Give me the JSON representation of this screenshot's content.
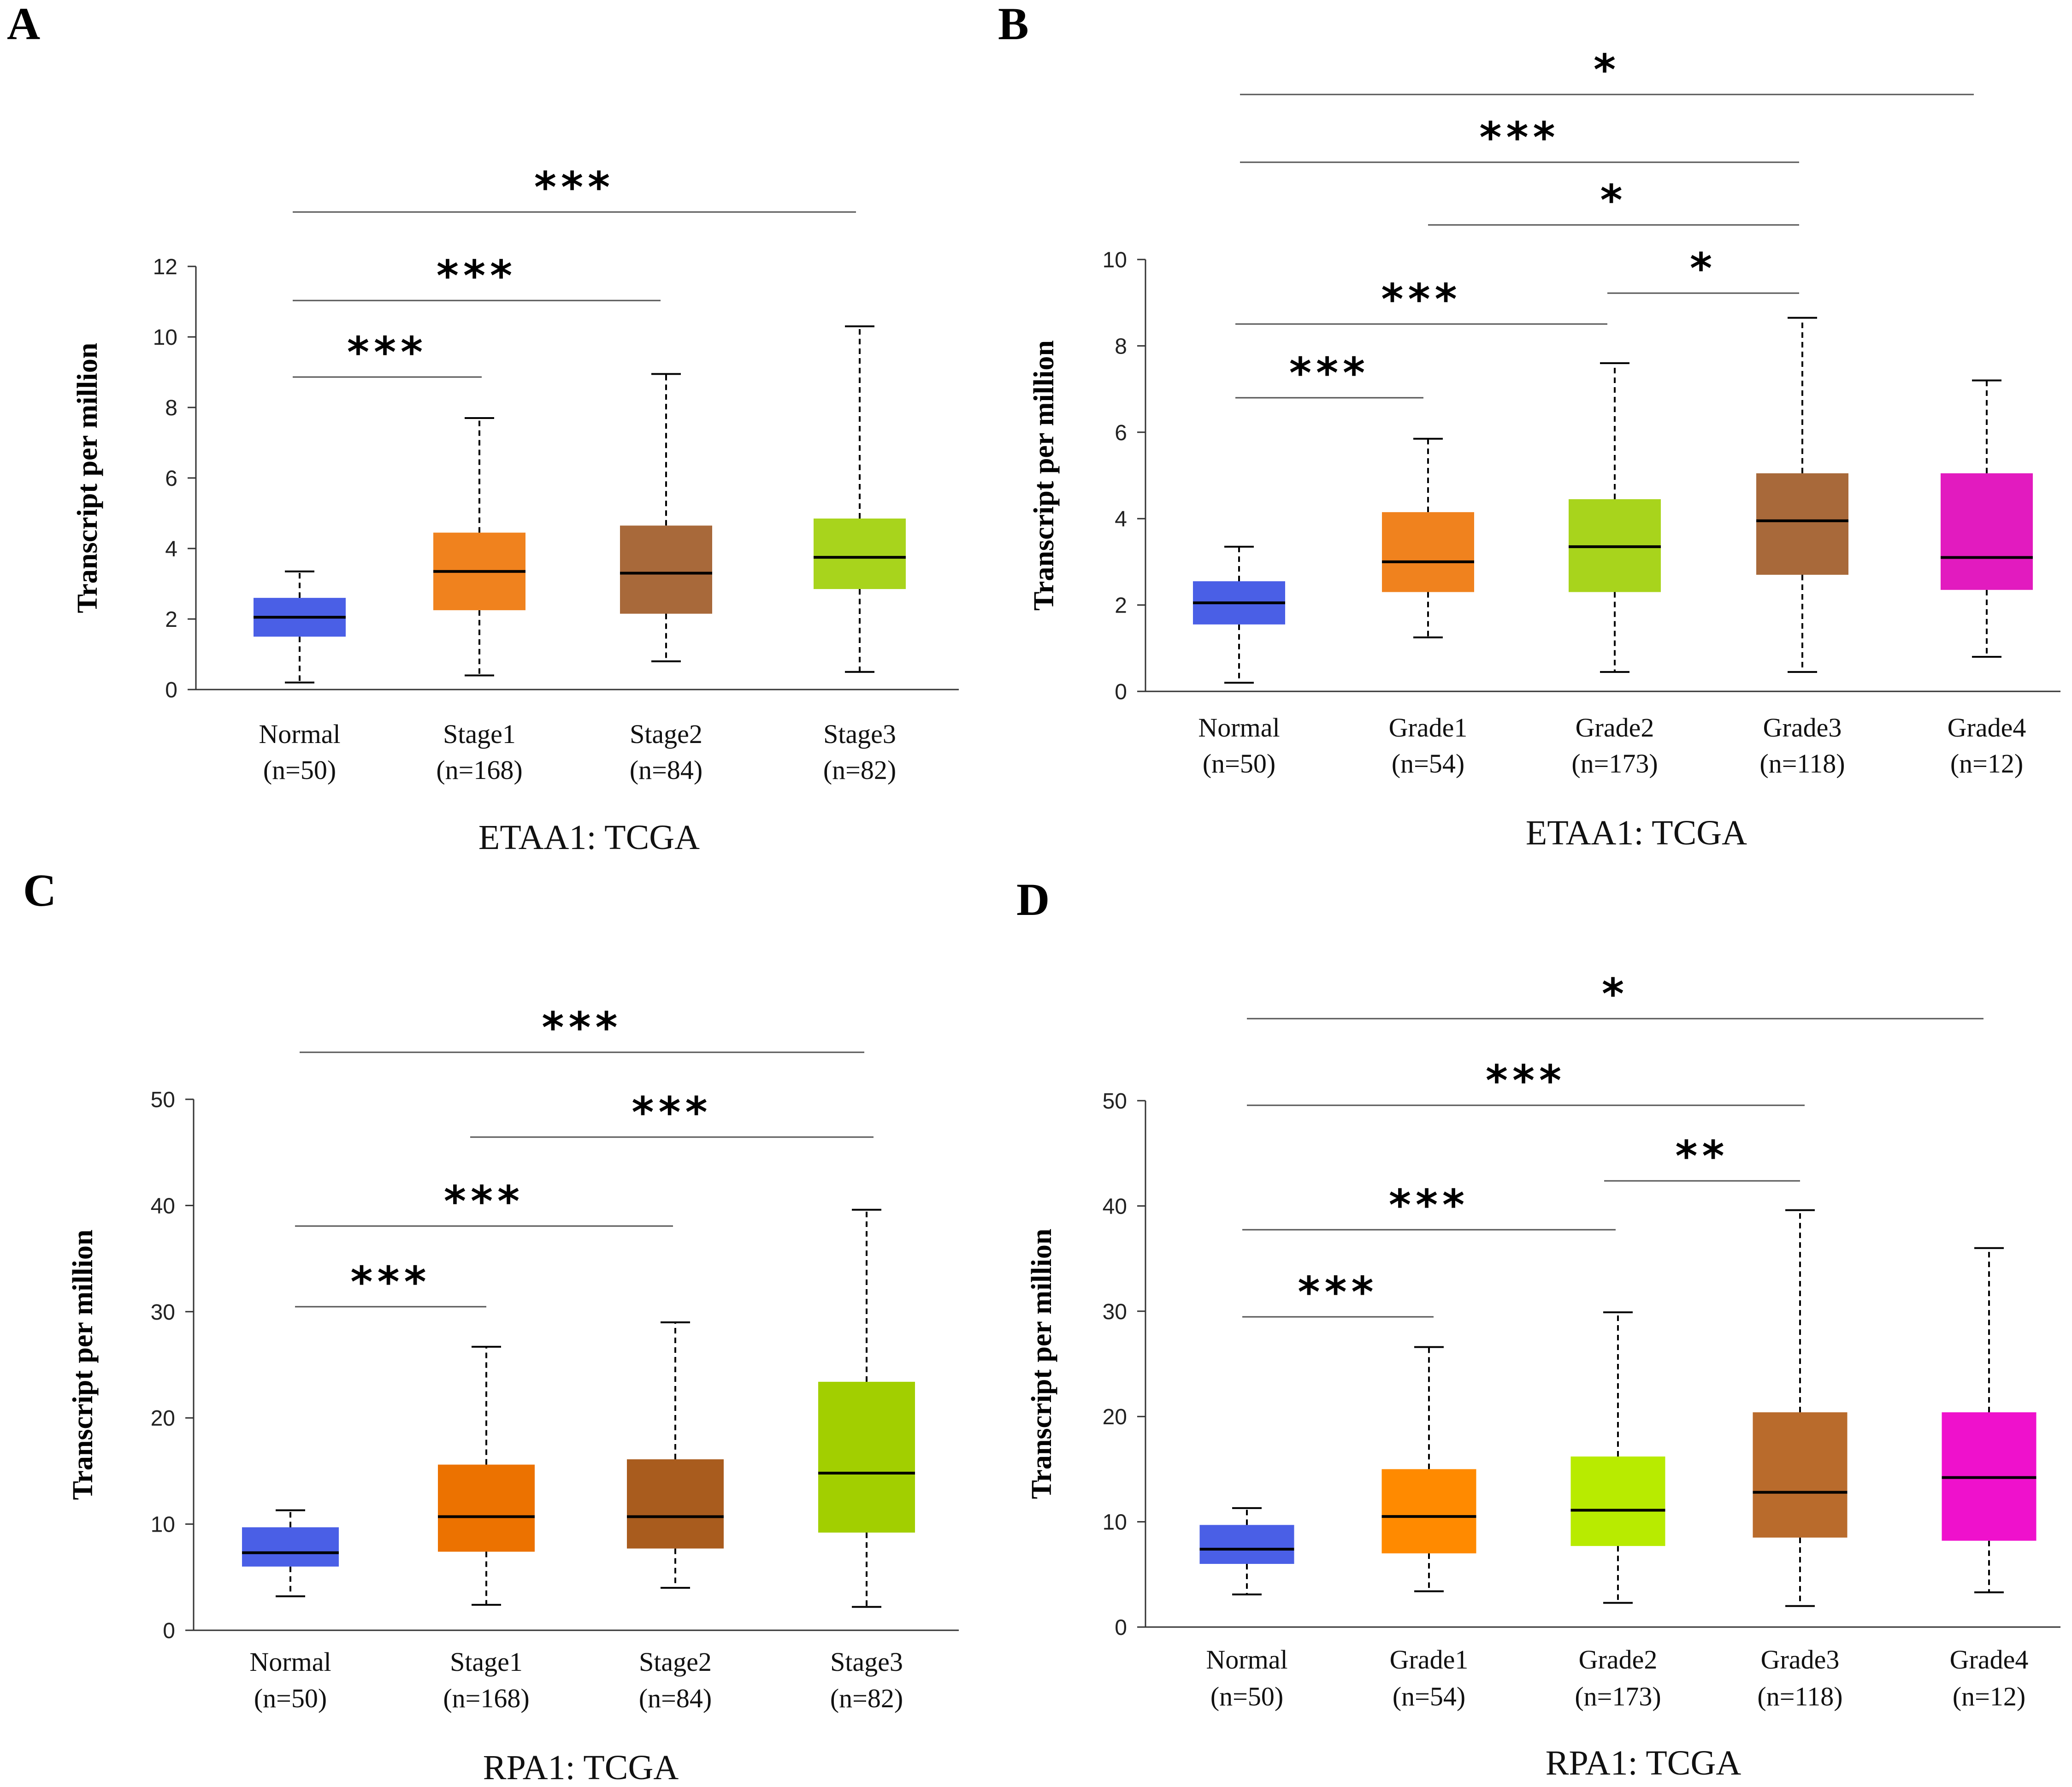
{
  "chart_data": [
    {
      "panel": "A",
      "type": "box",
      "title": "ETAA1:  TCGA",
      "ylabel": "Transcript per million",
      "ylim": [
        0,
        12
      ],
      "yticks": [
        "0",
        "2",
        "4",
        "6",
        "8",
        "10",
        "12"
      ],
      "categories": [
        "Normal",
        "Stage1",
        "Stage2",
        "Stage3"
      ],
      "counts": [
        "(n=50)",
        "(n=168)",
        "(n=84)",
        "(n=82)"
      ],
      "colors": [
        "#4a5fe6",
        "#f0821e",
        "#a8693a",
        "#a8d41c"
      ],
      "boxes": [
        {
          "min": 0.2,
          "q1": 1.5,
          "median": 2.05,
          "q3": 2.6,
          "max": 3.35
        },
        {
          "min": 0.4,
          "q1": 2.25,
          "median": 3.35,
          "q3": 4.45,
          "max": 7.7
        },
        {
          "min": 0.8,
          "q1": 2.15,
          "median": 3.3,
          "q3": 4.65,
          "max": 8.95
        },
        {
          "min": 0.5,
          "q1": 2.85,
          "median": 3.75,
          "q3": 4.85,
          "max": 10.3
        }
      ],
      "significance": [
        {
          "from": 0,
          "to": 3,
          "label": "***"
        },
        {
          "from": 0,
          "to": 2,
          "label": "***"
        },
        {
          "from": 0,
          "to": 1,
          "label": "***"
        }
      ]
    },
    {
      "panel": "B",
      "type": "box",
      "title": "ETAA1: TCGA",
      "ylabel": "Transcript per million",
      "ylim": [
        0,
        10
      ],
      "yticks": [
        "0",
        "2",
        "4",
        "6",
        "8",
        "10"
      ],
      "categories": [
        "Normal",
        "Grade1",
        "Grade2",
        "Grade3",
        "Grade4"
      ],
      "counts": [
        "(n=50)",
        "(n=54)",
        "(n=173)",
        "(n=118)",
        "(n=12)"
      ],
      "colors": [
        "#4a5fe6",
        "#f0821e",
        "#a8d41c",
        "#a8693a",
        "#e21bbf"
      ],
      "boxes": [
        {
          "min": 0.2,
          "q1": 1.55,
          "median": 2.05,
          "q3": 2.55,
          "max": 3.35
        },
        {
          "min": 1.25,
          "q1": 2.3,
          "median": 3.0,
          "q3": 4.15,
          "max": 5.85
        },
        {
          "min": 0.45,
          "q1": 2.3,
          "median": 3.35,
          "q3": 4.45,
          "max": 7.6
        },
        {
          "min": 0.45,
          "q1": 2.7,
          "median": 3.95,
          "q3": 5.05,
          "max": 8.65
        },
        {
          "min": 0.8,
          "q1": 2.35,
          "median": 3.1,
          "q3": 5.05,
          "max": 7.2
        }
      ],
      "significance": [
        {
          "from": 0,
          "to": 4,
          "label": "*"
        },
        {
          "from": 0,
          "to": 3,
          "label": "***"
        },
        {
          "from": 1,
          "to": 3,
          "label": "*"
        },
        {
          "from": 2,
          "to": 3,
          "label": "*"
        },
        {
          "from": 0,
          "to": 2,
          "label": "***"
        },
        {
          "from": 0,
          "to": 1,
          "label": "***"
        }
      ]
    },
    {
      "panel": "C",
      "type": "box",
      "title": "RPA1:  TCGA",
      "ylabel": "Transcript per million",
      "ylim": [
        0,
        50
      ],
      "yticks": [
        "0",
        "10",
        "20",
        "30",
        "40",
        "50"
      ],
      "categories": [
        "Normal",
        "Stage1",
        "Stage2",
        "Stage3"
      ],
      "counts": [
        "(n=50)",
        "(n=168)",
        "(n=84)",
        "(n=82)"
      ],
      "colors": [
        "#4a5fe6",
        "#ec7200",
        "#a95c1e",
        "#a2cf00"
      ],
      "boxes": [
        {
          "min": 3.2,
          "q1": 6.0,
          "median": 7.3,
          "q3": 9.7,
          "max": 11.3
        },
        {
          "min": 2.4,
          "q1": 7.4,
          "median": 10.7,
          "q3": 15.6,
          "max": 26.7
        },
        {
          "min": 4.0,
          "q1": 7.7,
          "median": 10.7,
          "q3": 16.1,
          "max": 29.0
        },
        {
          "min": 2.2,
          "q1": 9.2,
          "median": 14.8,
          "q3": 23.4,
          "max": 39.6
        }
      ],
      "significance": [
        {
          "from": 0,
          "to": 3,
          "label": "***"
        },
        {
          "from": 1,
          "to": 3,
          "label": "***"
        },
        {
          "from": 0,
          "to": 2,
          "label": "***"
        },
        {
          "from": 0,
          "to": 1,
          "label": "***"
        }
      ]
    },
    {
      "panel": "D",
      "type": "box",
      "title": "RPA1: TCGA",
      "ylabel": "Transcript per million",
      "ylim": [
        0,
        50
      ],
      "yticks": [
        "0",
        "10",
        "20",
        "30",
        "40",
        "50"
      ],
      "categories": [
        "Normal",
        "Grade1",
        "Grade2",
        "Grade3",
        "Grade4"
      ],
      "counts": [
        "(n=50)",
        "(n=54)",
        "(n=173)",
        "(n=118)",
        "(n=12)"
      ],
      "colors": [
        "#4a5fe6",
        "#ff8a00",
        "#b8eb00",
        "#b96b2c",
        "#ef11cc"
      ],
      "boxes": [
        {
          "min": 3.1,
          "q1": 6.0,
          "median": 7.4,
          "q3": 9.7,
          "max": 11.3
        },
        {
          "min": 3.4,
          "q1": 7.0,
          "median": 10.5,
          "q3": 15.0,
          "max": 26.6
        },
        {
          "min": 2.3,
          "q1": 7.7,
          "median": 11.1,
          "q3": 16.2,
          "max": 29.9
        },
        {
          "min": 2.0,
          "q1": 8.5,
          "median": 12.8,
          "q3": 20.4,
          "max": 39.6
        },
        {
          "min": 3.3,
          "q1": 8.2,
          "median": 14.2,
          "q3": 20.4,
          "max": 36.0
        }
      ],
      "significance": [
        {
          "from": 0,
          "to": 4,
          "label": "*"
        },
        {
          "from": 0,
          "to": 3,
          "label": "***"
        },
        {
          "from": 2,
          "to": 3,
          "label": "**"
        },
        {
          "from": 0,
          "to": 2,
          "label": "***"
        },
        {
          "from": 0,
          "to": 1,
          "label": "***"
        }
      ]
    }
  ]
}
